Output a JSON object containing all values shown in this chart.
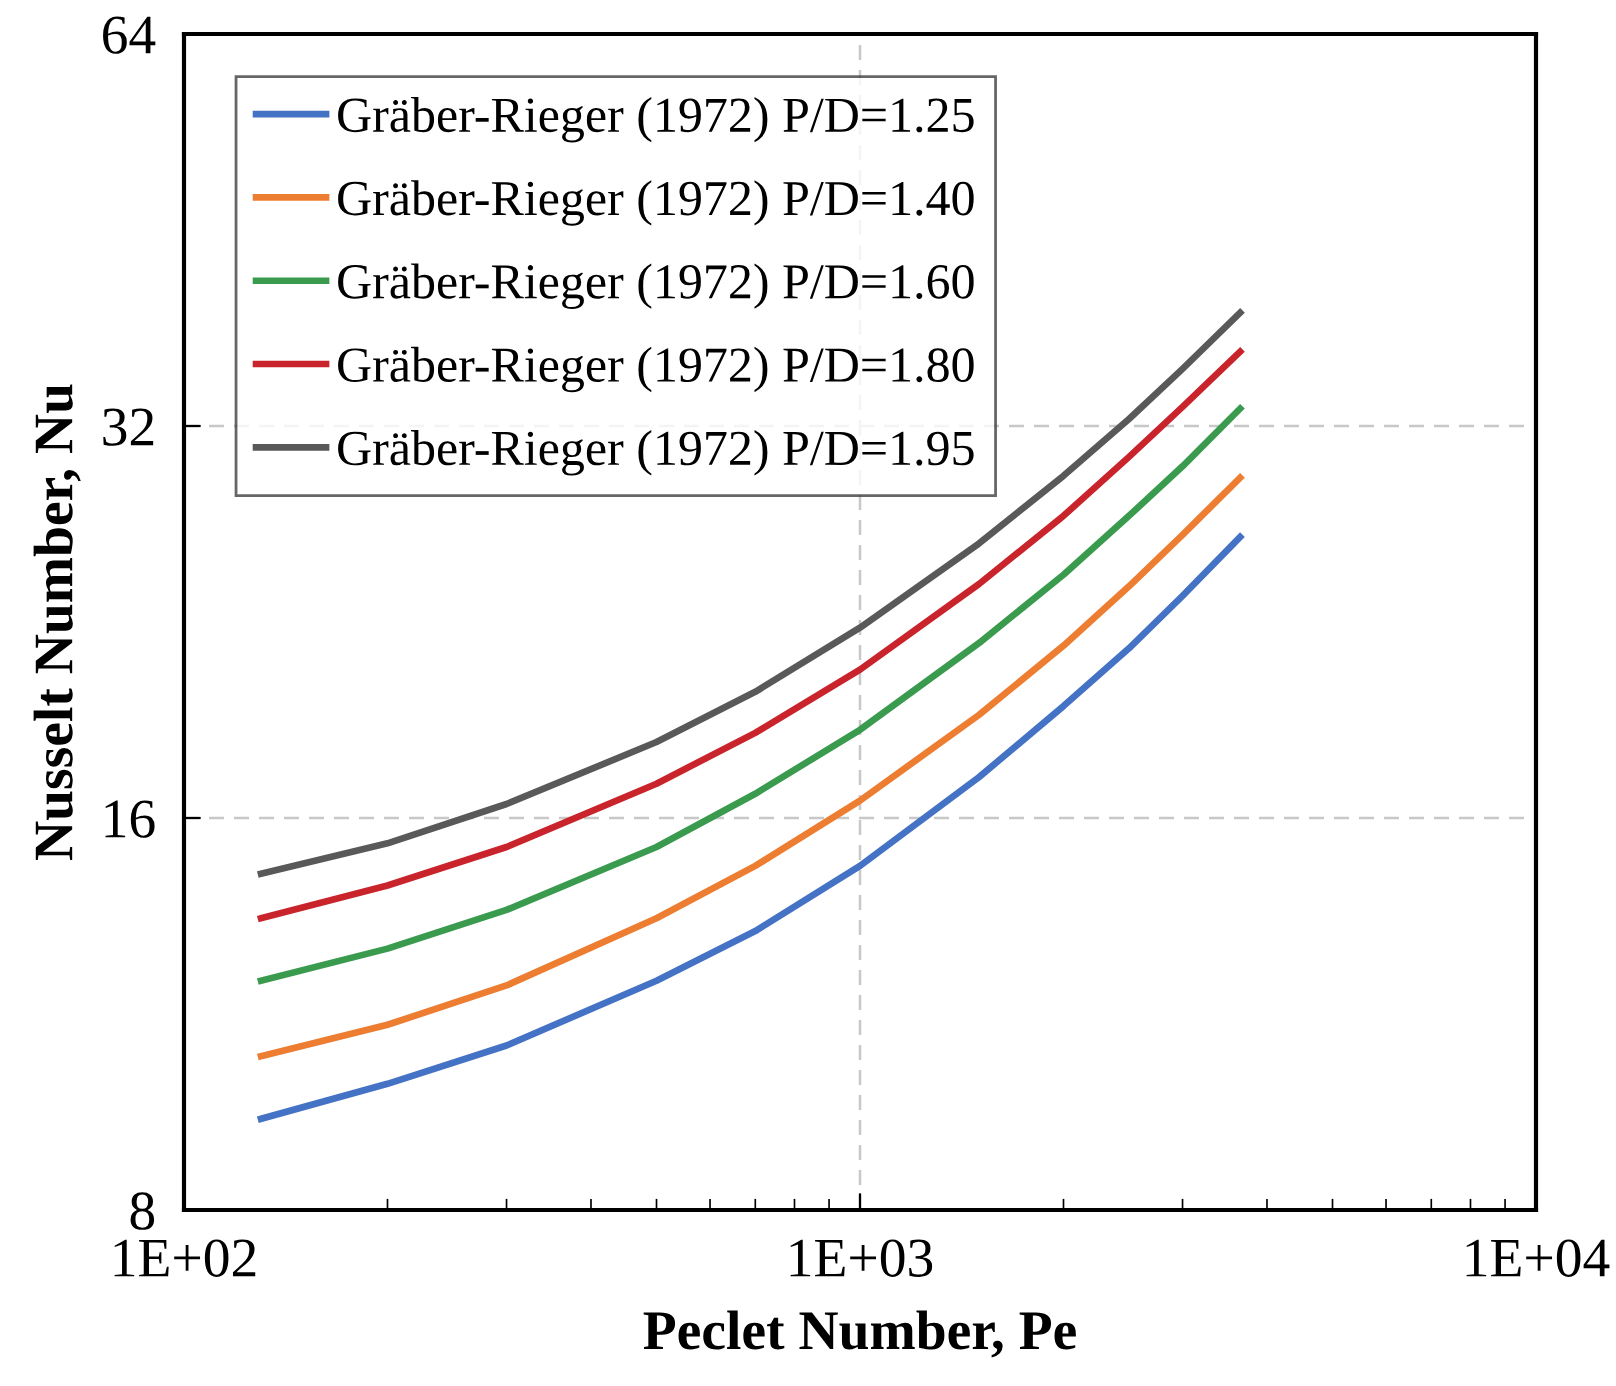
{
  "chart_data": {
    "type": "line",
    "xlabel": "Peclet Number, Pe",
    "ylabel": "Nusselt Number, Nu",
    "log": "xy",
    "grid": true,
    "legend": "top left",
    "marker": "none",
    "line_style": "solid",
    "x": [
      130,
      200,
      300,
      500,
      700,
      1000,
      1500,
      2000,
      2500,
      3000,
      3650
    ],
    "xlim": [
      100,
      10000
    ],
    "xticks": [
      {
        "value": 100,
        "label": "1E+02"
      },
      {
        "value": 1000,
        "label": "1E+03"
      },
      {
        "value": 10000,
        "label": "1E+04"
      }
    ],
    "ylim": [
      8,
      64
    ],
    "yticks": [
      8,
      16,
      32,
      64
    ],
    "series": [
      {
        "name": "Gräber-Rieger (1972) P/D=1.25",
        "color": "#4472c4",
        "values": [
          9.4,
          10.0,
          10.7,
          12.0,
          13.1,
          14.7,
          17.2,
          19.5,
          21.6,
          23.7,
          26.3
        ]
      },
      {
        "name": "Gräber-Rieger (1972) P/D=1.40",
        "color": "#ed7d31",
        "values": [
          10.5,
          11.1,
          11.9,
          13.4,
          14.7,
          16.5,
          19.2,
          21.7,
          24.1,
          26.4,
          29.2
        ]
      },
      {
        "name": "Gräber-Rieger (1972) P/D=1.60",
        "color": "#3a9b4f",
        "values": [
          12.0,
          12.7,
          13.6,
          15.2,
          16.7,
          18.7,
          21.8,
          24.6,
          27.3,
          29.8,
          33.0
        ]
      },
      {
        "name": "Gräber-Rieger (1972) P/D=1.80",
        "color": "#c9242b",
        "values": [
          13.4,
          14.2,
          15.2,
          17.0,
          18.6,
          20.8,
          24.2,
          27.3,
          30.3,
          33.1,
          36.5
        ]
      },
      {
        "name": "Gräber-Rieger (1972) P/D=1.95",
        "color": "#595959",
        "values": [
          14.5,
          15.3,
          16.4,
          18.3,
          20.0,
          22.4,
          26.0,
          29.3,
          32.4,
          35.4,
          39.1
        ]
      }
    ]
  }
}
